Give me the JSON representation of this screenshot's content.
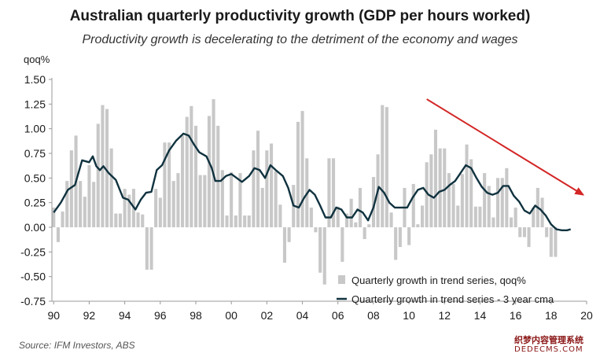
{
  "chart_data": {
    "type": "bar+line",
    "title": "Australian quarterly productivity growth (GDP per hours worked)",
    "subtitle": "Productivity growth is decelerating to the detriment of the economy and wages",
    "ylabel": "qoq%",
    "ylim": [
      -0.75,
      1.5
    ],
    "yticks": [
      "1.50",
      "1.25",
      "1.00",
      "0.75",
      "0.50",
      "0.25",
      "0.00",
      "-0.25",
      "-0.50",
      "-0.75"
    ],
    "xlim": [
      1989.9,
      2020.0
    ],
    "xticks": [
      "90",
      "92",
      "94",
      "96",
      "98",
      "00",
      "02",
      "04",
      "06",
      "08",
      "10",
      "12",
      "14",
      "16",
      "18",
      "20"
    ],
    "grid": false,
    "legend_position": "bottom-right",
    "series": [
      {
        "name": "Quarterly growth in trend series, qoq%",
        "type": "bar",
        "color": "#c8c8c8",
        "values": [
          0.2,
          -0.15,
          0.16,
          0.47,
          0.78,
          0.93,
          0.47,
          0.31,
          0.63,
          0.46,
          1.05,
          1.24,
          1.2,
          0.8,
          0.14,
          0.14,
          0.39,
          0.33,
          0.39,
          0.15,
          0.13,
          -0.43,
          -0.43,
          0.39,
          0.3,
          0.86,
          0.86,
          0.47,
          0.55,
          0.93,
          1.12,
          1.23,
          1.03,
          0.53,
          0.53,
          1.13,
          1.3,
          1.03,
          0.58,
          0.12,
          0.56,
          0.12,
          0.55,
          0.12,
          0.12,
          0.78,
          0.98,
          0.4,
          0.78,
          0.85,
          0.57,
          0.23,
          -0.36,
          -0.15,
          0.43,
          1.07,
          1.18,
          0.7,
          0.2,
          -0.05,
          -0.46,
          -0.58,
          0.7,
          0.7,
          0.21,
          -0.35,
          0.14,
          0.29,
          0.05,
          0.4,
          -0.12,
          0.03,
          0.51,
          0.74,
          1.24,
          1.22,
          0.15,
          -0.33,
          -0.2,
          0.4,
          -0.18,
          0.44,
          0.03,
          0.22,
          0.66,
          0.74,
          0.99,
          0.8,
          0.8,
          0.55,
          0.44,
          0.22,
          0.54,
          0.84,
          0.69,
          0.21,
          0.21,
          0.55,
          0.42,
          0.1,
          0.5,
          0.5,
          0.6,
          0.1,
          0.2,
          -0.1,
          -0.1,
          -0.2,
          0.2,
          0.4,
          0.3,
          -0.1,
          -0.3,
          -0.3
        ]
      },
      {
        "name": "Quarterly growth in trend series - 3 year cma",
        "type": "line",
        "color": "#10323f",
        "points": [
          [
            1990.0,
            0.15
          ],
          [
            1990.4,
            0.25
          ],
          [
            1990.8,
            0.38
          ],
          [
            1991.2,
            0.43
          ],
          [
            1991.6,
            0.68
          ],
          [
            1992.0,
            0.66
          ],
          [
            1992.2,
            0.72
          ],
          [
            1992.4,
            0.62
          ],
          [
            1992.6,
            0.58
          ],
          [
            1992.8,
            0.62
          ],
          [
            1993.1,
            0.55
          ],
          [
            1993.5,
            0.48
          ],
          [
            1993.9,
            0.3
          ],
          [
            1994.2,
            0.28
          ],
          [
            1994.6,
            0.18
          ],
          [
            1994.9,
            0.28
          ],
          [
            1995.2,
            0.35
          ],
          [
            1995.5,
            0.36
          ],
          [
            1995.8,
            0.58
          ],
          [
            1996.1,
            0.63
          ],
          [
            1996.5,
            0.78
          ],
          [
            1996.9,
            0.88
          ],
          [
            1997.3,
            0.95
          ],
          [
            1997.6,
            0.93
          ],
          [
            1997.9,
            0.84
          ],
          [
            1998.2,
            0.76
          ],
          [
            1998.6,
            0.72
          ],
          [
            1998.9,
            0.6
          ],
          [
            1999.1,
            0.47
          ],
          [
            1999.4,
            0.47
          ],
          [
            1999.7,
            0.52
          ],
          [
            2000.0,
            0.54
          ],
          [
            2000.3,
            0.5
          ],
          [
            2000.6,
            0.46
          ],
          [
            2001.0,
            0.52
          ],
          [
            2001.3,
            0.6
          ],
          [
            2001.6,
            0.58
          ],
          [
            2001.9,
            0.5
          ],
          [
            2002.2,
            0.63
          ],
          [
            2002.5,
            0.58
          ],
          [
            2002.9,
            0.52
          ],
          [
            2003.2,
            0.4
          ],
          [
            2003.5,
            0.22
          ],
          [
            2003.8,
            0.2
          ],
          [
            2004.1,
            0.3
          ],
          [
            2004.4,
            0.38
          ],
          [
            2004.7,
            0.33
          ],
          [
            2005.0,
            0.22
          ],
          [
            2005.3,
            0.1
          ],
          [
            2005.6,
            0.1
          ],
          [
            2005.9,
            0.2
          ],
          [
            2006.2,
            0.18
          ],
          [
            2006.5,
            0.1
          ],
          [
            2006.8,
            0.1
          ],
          [
            2007.1,
            0.18
          ],
          [
            2007.4,
            0.15
          ],
          [
            2007.7,
            0.07
          ],
          [
            2008.0,
            0.2
          ],
          [
            2008.3,
            0.41
          ],
          [
            2008.6,
            0.35
          ],
          [
            2008.9,
            0.25
          ],
          [
            2009.2,
            0.2
          ],
          [
            2009.6,
            0.2
          ],
          [
            2009.9,
            0.2
          ],
          [
            2010.2,
            0.3
          ],
          [
            2010.5,
            0.38
          ],
          [
            2010.8,
            0.4
          ],
          [
            2011.1,
            0.33
          ],
          [
            2011.4,
            0.3
          ],
          [
            2011.7,
            0.36
          ],
          [
            2012.0,
            0.38
          ],
          [
            2012.3,
            0.43
          ],
          [
            2012.6,
            0.47
          ],
          [
            2012.9,
            0.55
          ],
          [
            2013.2,
            0.63
          ],
          [
            2013.5,
            0.6
          ],
          [
            2013.8,
            0.5
          ],
          [
            2014.1,
            0.41
          ],
          [
            2014.4,
            0.35
          ],
          [
            2014.7,
            0.33
          ],
          [
            2015.0,
            0.35
          ],
          [
            2015.3,
            0.42
          ],
          [
            2015.6,
            0.42
          ],
          [
            2015.9,
            0.32
          ],
          [
            2016.2,
            0.26
          ],
          [
            2016.5,
            0.17
          ],
          [
            2016.8,
            0.14
          ],
          [
            2017.1,
            0.22
          ],
          [
            2017.4,
            0.18
          ],
          [
            2017.7,
            0.12
          ],
          [
            2018.0,
            0.03
          ],
          [
            2018.3,
            -0.02
          ],
          [
            2018.6,
            -0.03
          ],
          [
            2018.9,
            -0.03
          ],
          [
            2019.1,
            -0.02
          ]
        ]
      }
    ],
    "trend_arrow": {
      "color": "#d32626",
      "from": [
        2011.0,
        1.3
      ],
      "to": [
        2019.8,
        0.33
      ]
    }
  },
  "source": "Source: IFM Investors, ABS",
  "watermark": {
    "line1": "织梦内容管理系统",
    "line2": "DEDECMS.COM"
  }
}
